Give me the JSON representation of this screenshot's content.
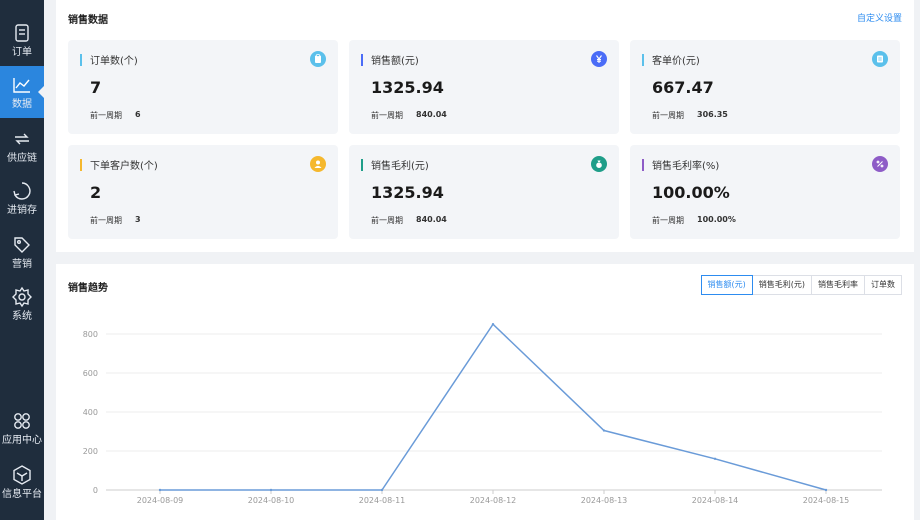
{
  "sidebar": {
    "items": [
      {
        "label": "订单",
        "icon": "order-icon"
      },
      {
        "label": "数据",
        "icon": "chart-icon",
        "active": true
      },
      {
        "label": "供应链",
        "icon": "supply-chain-icon"
      },
      {
        "label": "进销存",
        "icon": "inventory-icon"
      },
      {
        "label": "营销",
        "icon": "tag-icon"
      },
      {
        "label": "系统",
        "icon": "gear-icon"
      },
      {
        "label": "应用中心",
        "icon": "apps-icon"
      },
      {
        "label": "信息平台",
        "icon": "platform-icon"
      }
    ]
  },
  "sales": {
    "title": "销售数据",
    "custom_link": "自定义设置",
    "prev_label": "前一周期",
    "cards": [
      {
        "title": "订单数(个)",
        "value": "7",
        "prev": "6",
        "accent": "#5bc0eb",
        "icon": "clipboard-icon"
      },
      {
        "title": "销售额(元)",
        "value": "1325.94",
        "prev": "840.04",
        "accent": "#4a6cf7",
        "icon": "yen-icon"
      },
      {
        "title": "客单价(元)",
        "value": "667.47",
        "prev": "306.35",
        "accent": "#5bc0eb",
        "icon": "receipt-icon"
      },
      {
        "title": "下单客户数(个)",
        "value": "2",
        "prev": "3",
        "accent": "#f5b82e",
        "icon": "user-icon"
      },
      {
        "title": "销售毛利(元)",
        "value": "1325.94",
        "prev": "840.04",
        "accent": "#1f9e89",
        "icon": "money-bag-icon"
      },
      {
        "title": "销售毛利率(%)",
        "value": "100.00%",
        "prev": "100.00%",
        "accent": "#8e5cc7",
        "icon": "percent-icon"
      }
    ]
  },
  "trend": {
    "title": "销售趋势",
    "tabs": [
      "销售额(元)",
      "销售毛利(元)",
      "销售毛利率",
      "订单数"
    ],
    "active_tab": 0
  },
  "chart_data": {
    "type": "line",
    "title": "",
    "xlabel": "",
    "ylabel": "",
    "x": [
      "2024-08-09",
      "2024-08-10",
      "2024-08-11",
      "2024-08-12",
      "2024-08-13",
      "2024-08-14",
      "2024-08-15"
    ],
    "series": [
      {
        "values": [
          0,
          0,
          0,
          850,
          305,
          160,
          0
        ]
      }
    ],
    "ylim": [
      0,
      800
    ],
    "yticks": [
      0,
      200,
      400,
      600,
      800
    ],
    "grid": true,
    "line_color": "#6a9bd8"
  }
}
